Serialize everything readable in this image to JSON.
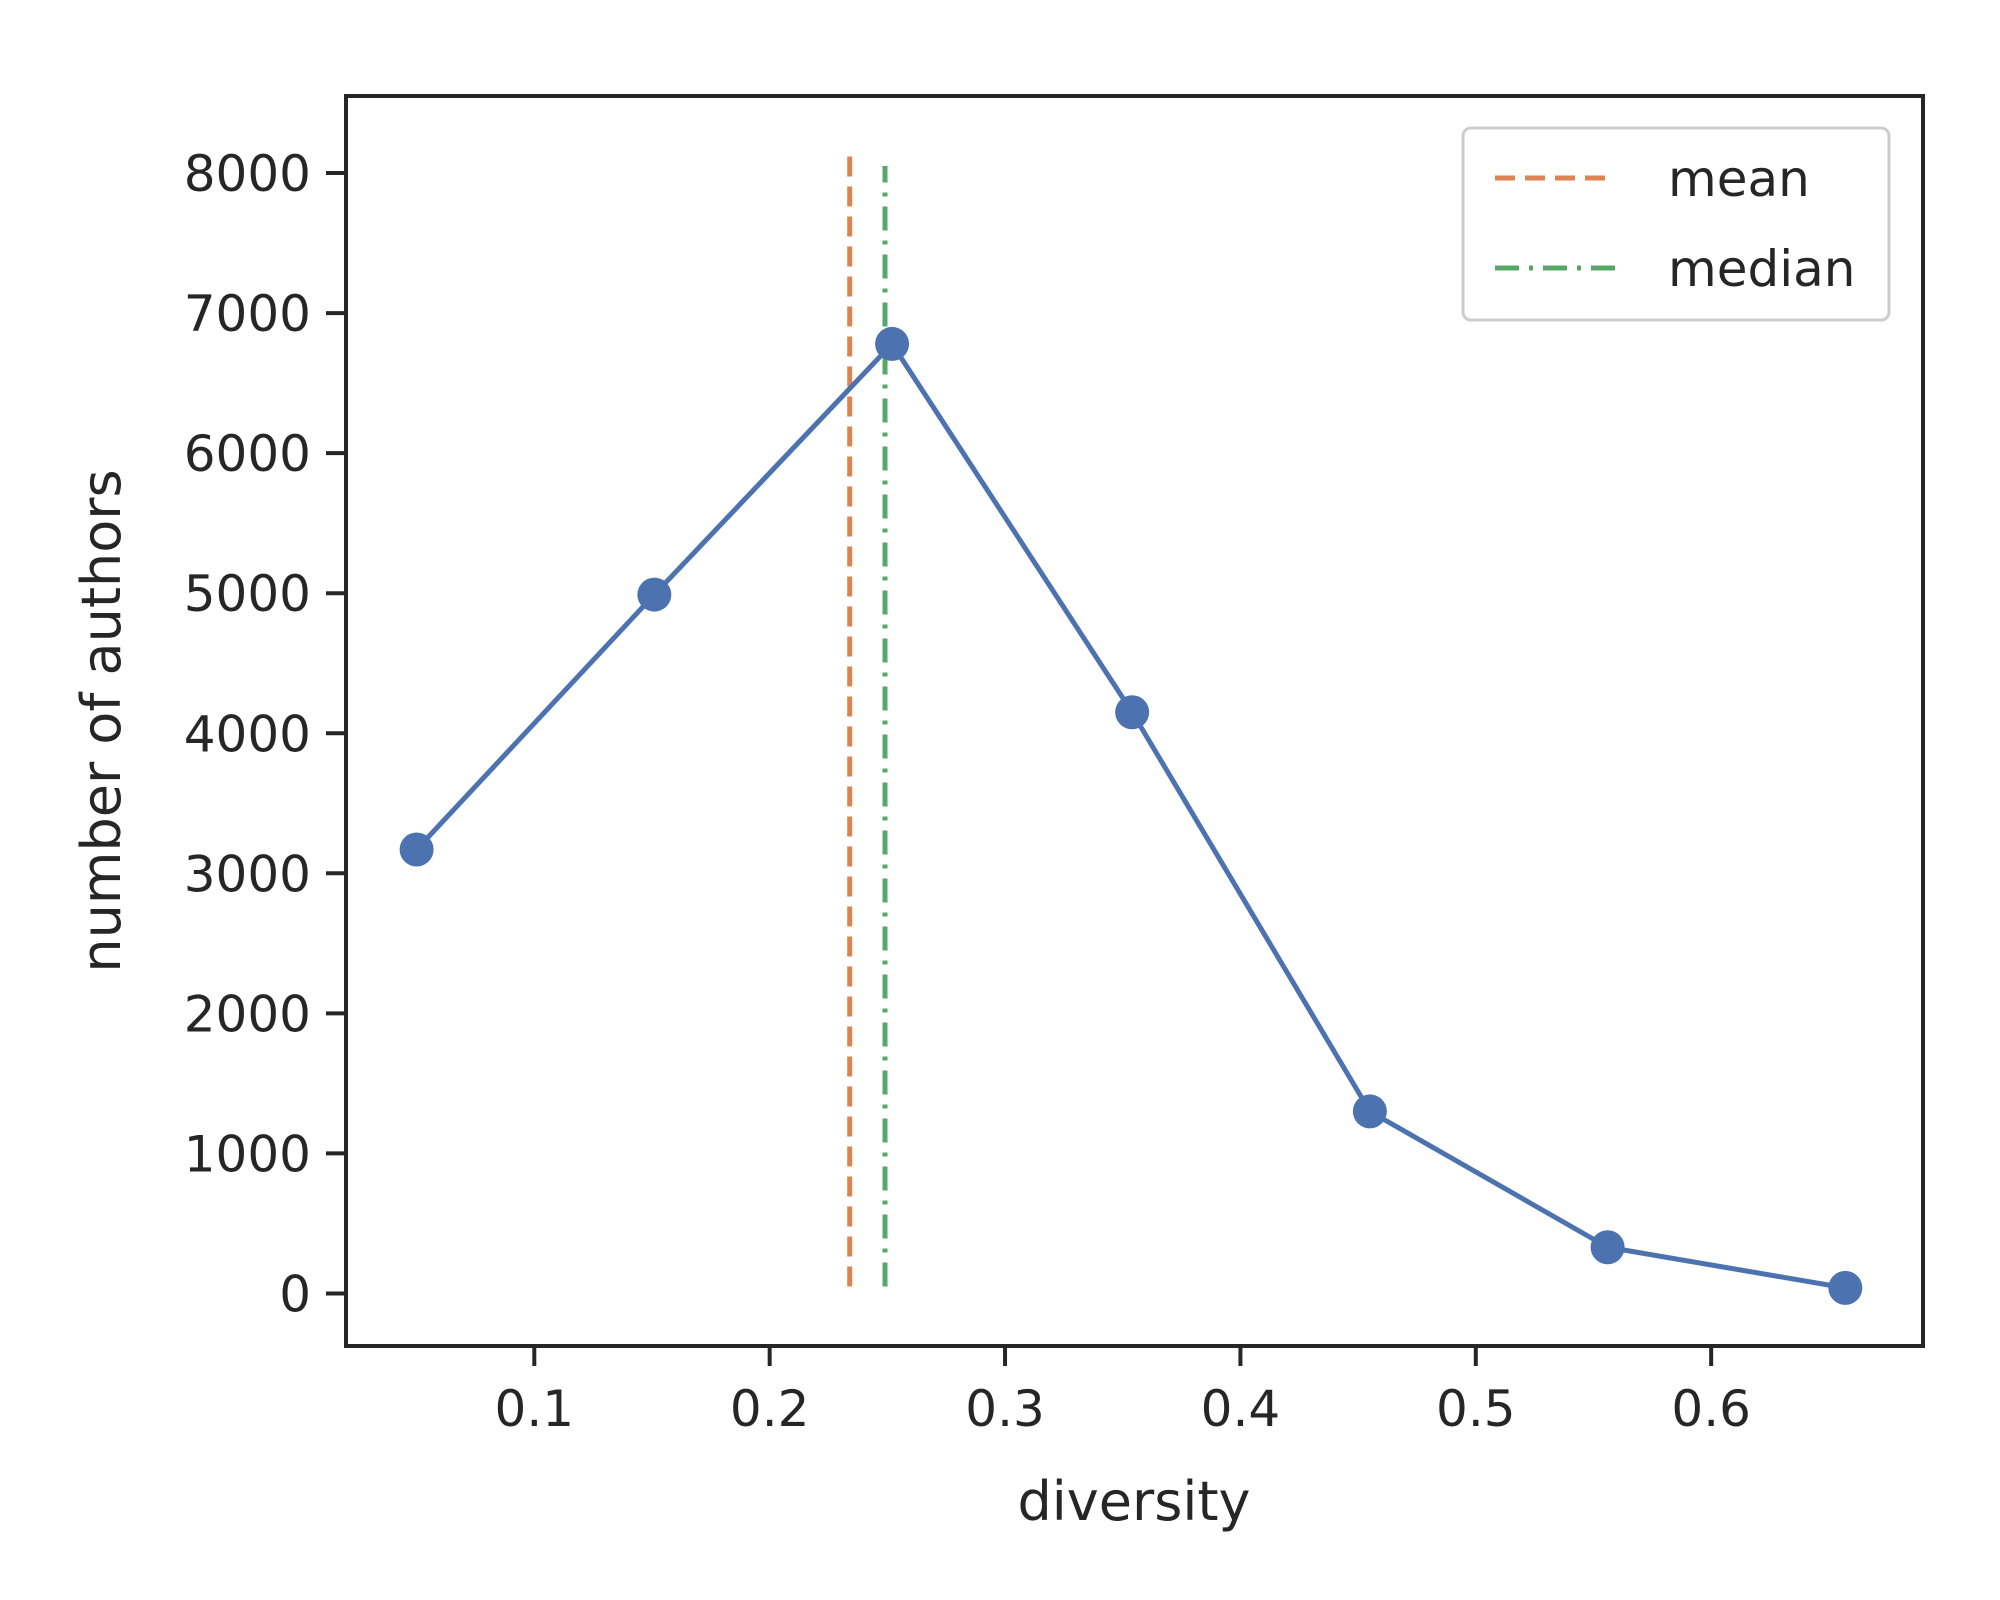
{
  "chart_data": {
    "type": "line",
    "title": "",
    "xlabel": "diversity",
    "ylabel": "number of authors",
    "xlim": [
      0.02,
      0.69
    ],
    "ylim": [
      -375,
      8550
    ],
    "xticks": [
      0.1,
      0.2,
      0.3,
      0.4,
      0.5,
      0.6
    ],
    "xtick_labels": [
      "0.1",
      "0.2",
      "0.3",
      "0.4",
      "0.5",
      "0.6"
    ],
    "yticks": [
      0,
      1000,
      2000,
      3000,
      4000,
      5000,
      6000,
      7000,
      8000
    ],
    "ytick_labels": [
      "0",
      "1000",
      "2000",
      "3000",
      "4000",
      "5000",
      "6000",
      "7000",
      "8000"
    ],
    "grid": false,
    "legend": "top-right",
    "series": [
      {
        "kind": "line-marker",
        "color": "#4c72b0",
        "x": [
          0.05,
          0.151,
          0.252,
          0.354,
          0.455,
          0.556,
          0.657
        ],
        "y": [
          3170,
          4990,
          6780,
          4150,
          1300,
          330,
          40
        ]
      }
    ],
    "reference_lines": [
      {
        "name": "mean",
        "x": 0.234,
        "y_range": [
          50,
          8150
        ],
        "color": "#dd8452",
        "style": "dashed"
      },
      {
        "name": "median",
        "x": 0.249,
        "y_range": [
          50,
          8050
        ],
        "color": "#55a868",
        "style": "dashdot"
      }
    ]
  }
}
